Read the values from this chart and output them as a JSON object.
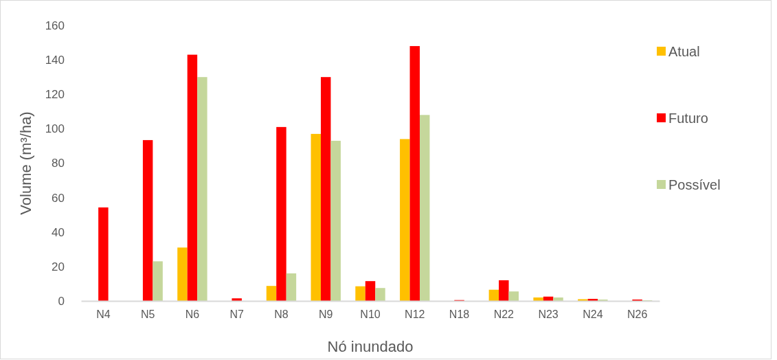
{
  "chart_data": {
    "type": "bar",
    "xlabel": "Nó inundado",
    "ylabel": "Volume (m³/ha)",
    "categories": [
      "N4",
      "N5",
      "N6",
      "N7",
      "N8",
      "N9",
      "N10",
      "N12",
      "N18",
      "N22",
      "N23",
      "N24",
      "N26"
    ],
    "series": [
      {
        "name": "Atual",
        "color": "#ffc000",
        "values": [
          0,
          0,
          31,
          0,
          8.7,
          97,
          8.5,
          94,
          0,
          6.5,
          2,
          1,
          null
        ]
      },
      {
        "name": "Futuro",
        "color": "#ff0000",
        "values": [
          54.3,
          93.4,
          143,
          1.5,
          101,
          130,
          11.5,
          148,
          0.5,
          12,
          2.5,
          1.2,
          0.8
        ]
      },
      {
        "name": "Possível",
        "color": "#c5d79b",
        "values": [
          0,
          23,
          130,
          0,
          16,
          93,
          7.5,
          108,
          0,
          5.5,
          2,
          0.8,
          0.4
        ]
      }
    ],
    "ylim": [
      0,
      160
    ],
    "yticks": [
      0,
      20,
      40,
      60,
      80,
      100,
      120,
      140,
      160
    ],
    "grid": false,
    "legend": "right"
  }
}
